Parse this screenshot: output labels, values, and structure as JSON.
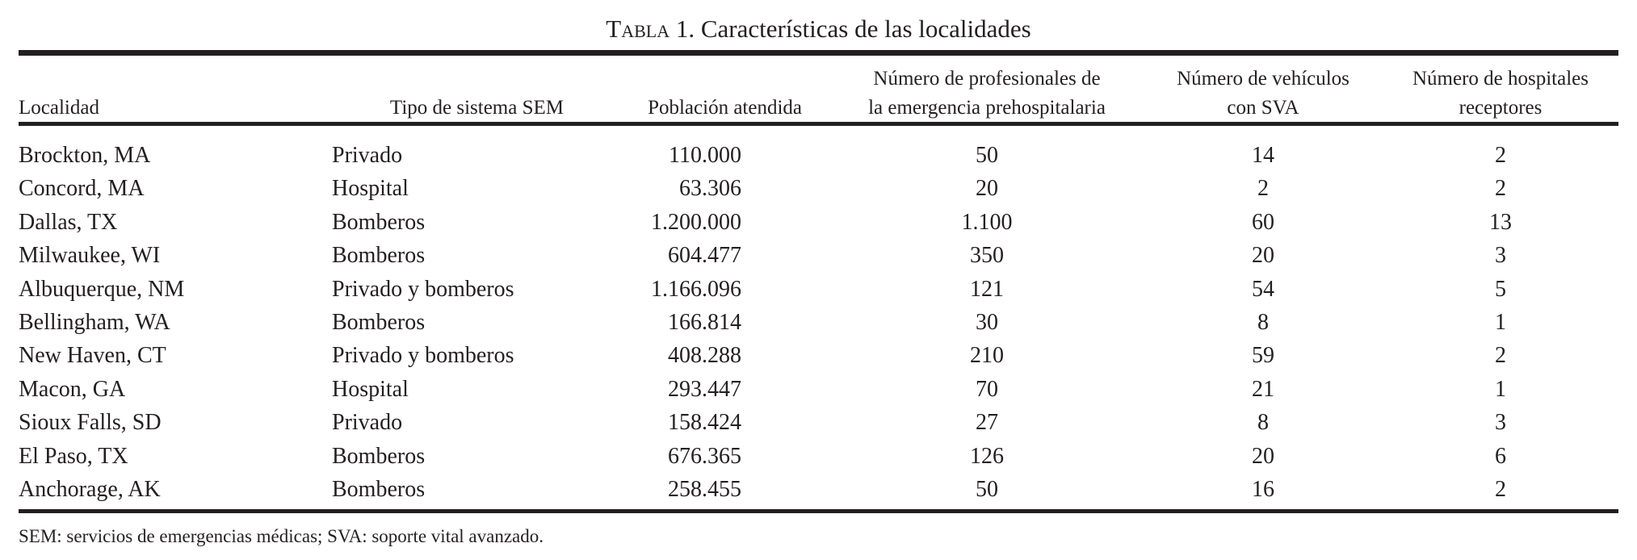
{
  "title": {
    "label": "Tabla",
    "text": "1. Características de las localidades"
  },
  "headers": [
    {
      "line1": "Localidad",
      "line2": ""
    },
    {
      "line1": "Tipo de sistema SEM",
      "line2": ""
    },
    {
      "line1": "Población atendida",
      "line2": ""
    },
    {
      "line1": "Número de profesionales de",
      "line2": "la emergencia prehospitalaria"
    },
    {
      "line1": "Número de vehículos",
      "line2": "con SVA"
    },
    {
      "line1": "Número de hospitales",
      "line2": "receptores"
    }
  ],
  "rows": [
    [
      "Brockton, MA",
      "Privado",
      "110.000",
      "50",
      "14",
      "2"
    ],
    [
      "Concord, MA",
      "Hospital",
      "63.306",
      "20",
      "2",
      "2"
    ],
    [
      "Dallas, TX",
      "Bomberos",
      "1.200.000",
      "1.100",
      "60",
      "13"
    ],
    [
      "Milwaukee, WI",
      "Bomberos",
      "604.477",
      "350",
      "20",
      "3"
    ],
    [
      "Albuquerque, NM",
      "Privado y bomberos",
      "1.166.096",
      "121",
      "54",
      "5"
    ],
    [
      "Bellingham, WA",
      "Bomberos",
      "166.814",
      "30",
      "8",
      "1"
    ],
    [
      "New Haven, CT",
      "Privado y bomberos",
      "408.288",
      "210",
      "59",
      "2"
    ],
    [
      "Macon, GA",
      "Hospital",
      "293.447",
      "70",
      "21",
      "1"
    ],
    [
      "Sioux Falls, SD",
      "Privado",
      "158.424",
      "27",
      "8",
      "3"
    ],
    [
      "El Paso, TX",
      "Bomberos",
      "676.365",
      "126",
      "20",
      "6"
    ],
    [
      "Anchorage, AK",
      "Bomberos",
      "258.455",
      "50",
      "16",
      "2"
    ]
  ],
  "footnote": "SEM: servicios de emergencias médicas; SVA: soporte vital avanzado."
}
